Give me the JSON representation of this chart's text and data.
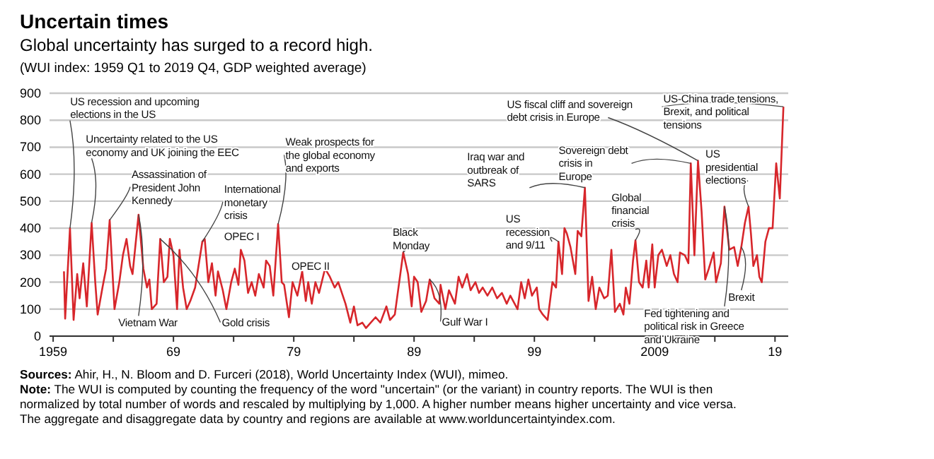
{
  "chart_data": {
    "type": "line",
    "title": "Uncertain times",
    "subtitle": "Global uncertainty has surged to a record high.",
    "xlim": [
      1958.7,
      2020.1
    ],
    "ylim": [
      0,
      900
    ],
    "xticks": [
      {
        "value": 1959,
        "label": "1959"
      },
      {
        "value": 1964,
        "label": null
      },
      {
        "value": 1969,
        "label": "69"
      },
      {
        "value": 1974,
        "label": null
      },
      {
        "value": 1979,
        "label": "79"
      },
      {
        "value": 1984,
        "label": null
      },
      {
        "value": 1989,
        "label": "89"
      },
      {
        "value": 1994,
        "label": null
      },
      {
        "value": 1999,
        "label": "99"
      },
      {
        "value": 2004,
        "label": null
      },
      {
        "value": 2009,
        "label": "2009"
      },
      {
        "value": 2014,
        "label": null
      },
      {
        "value": 2019,
        "label": "19"
      }
    ],
    "yticks": [
      0,
      100,
      200,
      300,
      400,
      500,
      600,
      700,
      800,
      900
    ],
    "grid": "y",
    "series": [
      {
        "color": "#d7262b",
        "x": [
          1959.9,
          1960.0,
          1960.4,
          1960.7,
          1961.0,
          1961.2,
          1961.5,
          1961.8,
          1962.2,
          1962.5,
          1962.7,
          1963.1,
          1963.4,
          1963.7,
          1964.1,
          1964.5,
          1964.8,
          1965.1,
          1965.4,
          1965.6,
          1966.1,
          1966.5,
          1966.8,
          1967.0,
          1967.2,
          1967.6,
          1967.9,
          1968.2,
          1968.5,
          1968.7,
          1969.0,
          1969.3,
          1969.5,
          1969.8,
          1970.1,
          1970.4,
          1970.8,
          1971.4,
          1971.6,
          1971.9,
          1972.2,
          1972.5,
          1972.7,
          1973.1,
          1973.4,
          1973.8,
          1974.1,
          1974.4,
          1974.6,
          1974.9,
          1975.2,
          1975.5,
          1975.8,
          1976.1,
          1976.5,
          1976.7,
          1977.0,
          1977.3,
          1977.7,
          1978.0,
          1978.2,
          1978.6,
          1978.9,
          1979.3,
          1979.7,
          1980.0,
          1980.2,
          1980.5,
          1980.8,
          1981.1,
          1981.6,
          1982.0,
          1982.4,
          1982.7,
          1983.3,
          1983.7,
          1984.0,
          1984.3,
          1984.7,
          1985.0,
          1985.4,
          1985.8,
          1986.2,
          1986.7,
          1987.0,
          1987.4,
          1988.1,
          1988.5,
          1988.8,
          1989.0,
          1989.3,
          1989.6,
          1990.0,
          1990.3,
          1990.7,
          1991.1,
          1991.2,
          1991.6,
          1991.9,
          1992.4,
          1992.7,
          1993.0,
          1993.4,
          1993.7,
          1994.1,
          1994.4,
          1994.7,
          1995.1,
          1995.5,
          1995.9,
          1996.3,
          1996.7,
          1997.0,
          1997.6,
          1997.9,
          1998.2,
          1998.5,
          1998.8,
          1999.2,
          1999.4,
          1999.7,
          2000.1,
          2000.5,
          2000.8,
          2001.0,
          2001.3,
          2001.5,
          2001.7,
          2002.0,
          2002.4,
          2002.6,
          2002.9,
          2003.2,
          2003.5,
          2003.8,
          2004.1,
          2004.4,
          2004.8,
          2005.1,
          2005.4,
          2005.7,
          2006.1,
          2006.4,
          2006.6,
          2006.9,
          2007.2,
          2007.4,
          2007.7,
          2008.0,
          2008.3,
          2008.5,
          2008.8,
          2009.0,
          2009.3,
          2009.6,
          2010.0,
          2010.3,
          2010.6,
          2010.9,
          2011.1,
          2011.5,
          2011.8,
          2012.0,
          2012.3,
          2012.6,
          2012.9,
          2013.2,
          2013.5,
          2013.9,
          2014.1,
          2014.5,
          2014.8,
          2015.2,
          2015.6,
          2015.9,
          2016.2,
          2016.5,
          2016.8,
          2017.0,
          2017.2,
          2017.5,
          2017.7,
          2017.9,
          2018.2,
          2018.5,
          2018.8,
          2019.1,
          2019.4,
          2019.7
        ],
        "values": [
          240,
          65,
          400,
          60,
          230,
          140,
          270,
          110,
          420,
          200,
          80,
          180,
          250,
          430,
          100,
          200,
          300,
          360,
          260,
          230,
          450,
          250,
          180,
          210,
          100,
          120,
          360,
          200,
          220,
          360,
          300,
          100,
          320,
          180,
          100,
          130,
          180,
          350,
          360,
          200,
          270,
          150,
          240,
          170,
          100,
          200,
          250,
          190,
          320,
          280,
          160,
          200,
          150,
          230,
          180,
          280,
          260,
          150,
          415,
          200,
          190,
          70,
          200,
          150,
          240,
          130,
          200,
          120,
          200,
          160,
          250,
          220,
          180,
          200,
          120,
          50,
          110,
          40,
          50,
          30,
          50,
          70,
          50,
          110,
          60,
          80,
          310,
          230,
          110,
          220,
          200,
          90,
          130,
          210,
          140,
          120,
          190,
          100,
          170,
          120,
          220,
          180,
          230,
          170,
          200,
          160,
          180,
          150,
          180,
          140,
          160,
          120,
          150,
          100,
          200,
          140,
          210,
          150,
          180,
          100,
          80,
          60,
          200,
          180,
          350,
          230,
          400,
          380,
          330,
          230,
          390,
          370,
          550,
          130,
          220,
          100,
          180,
          140,
          150,
          320,
          90,
          120,
          80,
          180,
          120,
          280,
          355,
          200,
          180,
          280,
          180,
          340,
          180,
          300,
          320,
          260,
          300,
          230,
          200,
          310,
          300,
          270,
          640,
          300,
          650,
          460,
          210,
          250,
          310,
          200,
          270,
          480,
          320,
          330,
          260,
          330,
          420,
          480,
          380,
          260,
          300,
          220,
          200,
          350,
          400,
          400,
          640,
          510,
          850
        ]
      }
    ],
    "annotations": [
      "(WUI index: 1959 Q1 to 2019 Q4, GDP weighted average)",
      {
        "text": "US recession and upcoming elections in the US",
        "x": 1960.4,
        "y": 400
      },
      {
        "text": "Uncertainty related to the US economy and UK joining the EEC",
        "x": 1962.2,
        "y": 420
      },
      {
        "text": "Assassination of President John Kennedy",
        "x": 1963.7,
        "y": 430
      },
      {
        "text": "Vietnam War",
        "x": 1966.1,
        "y": 450
      },
      {
        "text": "Gold crisis",
        "x": 1967.9,
        "y": 360
      },
      {
        "text": "International monetary crisis",
        "x": 1971.4,
        "y": 350
      },
      {
        "text": "OPEC I",
        "x": 1974.6,
        "y": 320
      },
      {
        "text": "OPEC II",
        "x": 1979.7,
        "y": 240
      },
      {
        "text": "Weak prospects for the global economy and exports",
        "x": 1977.7,
        "y": 415
      },
      {
        "text": "Black Monday",
        "x": 1988.1,
        "y": 310
      },
      {
        "text": "Gulf War I",
        "x": 1990.3,
        "y": 210
      },
      {
        "text": "Iraq war and outbreak of SARS",
        "x": 2003.2,
        "y": 550
      },
      {
        "text": "US recession and 9/11",
        "x": 2001.0,
        "y": 350
      },
      {
        "text": "Sovereign debt crisis in Europe",
        "x": 2012.0,
        "y": 640
      },
      {
        "text": "US fiscal cliff and sovereign debt crisis in Europe",
        "x": 2012.6,
        "y": 650
      },
      {
        "text": "Global financial crisis",
        "x": 2007.4,
        "y": 355
      },
      {
        "text": "Fed tightening and political risk in Greece and Ukraine",
        "x": 2014.8,
        "y": 480
      },
      {
        "text": "US presidential elections",
        "x": 2016.8,
        "y": 480
      },
      {
        "text": "Brexit",
        "x": 2016.2,
        "y": 330
      },
      {
        "text": "US-China trade tensions, Brexit, and political tensions",
        "x": 2019.7,
        "y": 850
      },
      "Sources: Ahir, H., N. Bloom and D. Furceri (2018), World Uncertainty Index (WUI), mimeo.",
      "Note: The WUI is computed by counting the frequency of the word \"uncertain\" (or the variant) in country reports. The WUI is then normalized by total number of words and rescaled by multiplying by 1,000. A higher number means higher uncertainty and vice versa. The aggregate and disaggregate data by country and regions are available at www.worlduncertaintyindex.com."
    ]
  }
}
